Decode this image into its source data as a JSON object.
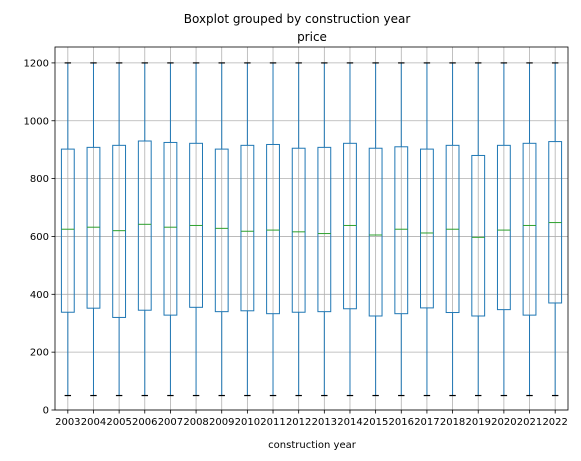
{
  "chart_data": {
    "type": "boxplot",
    "suptitle": "Boxplot grouped by construction year",
    "title": "price",
    "xlabel": "construction year",
    "ylabel": "",
    "ylim": [
      0,
      1255
    ],
    "yticks": [
      0,
      200,
      400,
      600,
      800,
      1000,
      1200
    ],
    "grid": true,
    "colors": {
      "box": "#1f77b4",
      "median": "#2ca02c",
      "cap": "#000000",
      "grid": "#b0b0b0"
    },
    "categories": [
      "2003",
      "2004",
      "2005",
      "2006",
      "2007",
      "2008",
      "2009",
      "2010",
      "2011",
      "2012",
      "2013",
      "2014",
      "2015",
      "2016",
      "2017",
      "2018",
      "2019",
      "2020",
      "2021",
      "2022"
    ],
    "boxes": [
      {
        "whisker_low": 50,
        "q1": 338,
        "median": 625,
        "q3": 902,
        "whisker_high": 1200
      },
      {
        "whisker_low": 50,
        "q1": 352,
        "median": 632,
        "q3": 908,
        "whisker_high": 1200
      },
      {
        "whisker_low": 50,
        "q1": 320,
        "median": 620,
        "q3": 915,
        "whisker_high": 1200
      },
      {
        "whisker_low": 50,
        "q1": 345,
        "median": 642,
        "q3": 930,
        "whisker_high": 1200
      },
      {
        "whisker_low": 50,
        "q1": 328,
        "median": 632,
        "q3": 925,
        "whisker_high": 1200
      },
      {
        "whisker_low": 50,
        "q1": 355,
        "median": 638,
        "q3": 922,
        "whisker_high": 1200
      },
      {
        "whisker_low": 50,
        "q1": 340,
        "median": 628,
        "q3": 902,
        "whisker_high": 1200
      },
      {
        "whisker_low": 50,
        "q1": 343,
        "median": 618,
        "q3": 915,
        "whisker_high": 1200
      },
      {
        "whisker_low": 50,
        "q1": 333,
        "median": 622,
        "q3": 918,
        "whisker_high": 1200
      },
      {
        "whisker_low": 50,
        "q1": 338,
        "median": 616,
        "q3": 905,
        "whisker_high": 1200
      },
      {
        "whisker_low": 50,
        "q1": 340,
        "median": 610,
        "q3": 908,
        "whisker_high": 1200
      },
      {
        "whisker_low": 50,
        "q1": 350,
        "median": 638,
        "q3": 922,
        "whisker_high": 1200
      },
      {
        "whisker_low": 50,
        "q1": 325,
        "median": 605,
        "q3": 905,
        "whisker_high": 1200
      },
      {
        "whisker_low": 50,
        "q1": 333,
        "median": 625,
        "q3": 910,
        "whisker_high": 1200
      },
      {
        "whisker_low": 50,
        "q1": 353,
        "median": 612,
        "q3": 902,
        "whisker_high": 1200
      },
      {
        "whisker_low": 50,
        "q1": 337,
        "median": 625,
        "q3": 915,
        "whisker_high": 1200
      },
      {
        "whisker_low": 50,
        "q1": 325,
        "median": 597,
        "q3": 880,
        "whisker_high": 1200
      },
      {
        "whisker_low": 50,
        "q1": 347,
        "median": 622,
        "q3": 915,
        "whisker_high": 1200
      },
      {
        "whisker_low": 50,
        "q1": 328,
        "median": 638,
        "q3": 922,
        "whisker_high": 1200
      },
      {
        "whisker_low": 50,
        "q1": 370,
        "median": 648,
        "q3": 928,
        "whisker_high": 1200
      }
    ]
  }
}
